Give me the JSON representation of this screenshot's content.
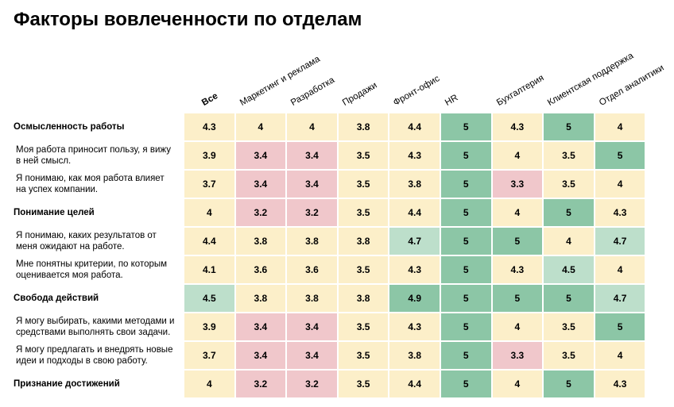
{
  "title": "Факторы вовлеченности по отделам",
  "colors": {
    "green": "#8CC6A6",
    "light_green": "#BDDFCB",
    "cream": "#FCEFC9",
    "pink": "#F0C7CB",
    "text": "#000000",
    "background": "#FFFFFF"
  },
  "chart_data": {
    "type": "heatmap",
    "title": "Факторы вовлеченности по отделам",
    "value_range": [
      1,
      5
    ],
    "legend": false,
    "columns": [
      "Все",
      "Маркетинг и реклама",
      "Разработка",
      "Продажи",
      "Фронт-офис",
      "HR",
      "Бухгалтерия",
      "Клиентская поддержка",
      "Отдел аналитики"
    ],
    "rows": [
      {
        "label": "Осмысленность работы",
        "category": true,
        "values": [
          4.3,
          4,
          4,
          3.8,
          4.4,
          5,
          4.3,
          5,
          4
        ]
      },
      {
        "label": "Моя работа приносит пользу, я вижу в ней смысл.",
        "category": false,
        "values": [
          3.9,
          3.4,
          3.4,
          3.5,
          4.3,
          5,
          4,
          3.5,
          5
        ]
      },
      {
        "label": "Я понимаю, как моя работа влияет на успех компании.",
        "category": false,
        "values": [
          3.7,
          3.4,
          3.4,
          3.5,
          3.8,
          5,
          3.3,
          3.5,
          4
        ]
      },
      {
        "label": "Понимание целей",
        "category": true,
        "values": [
          4,
          3.2,
          3.2,
          3.5,
          4.4,
          5,
          4,
          5,
          4.3
        ]
      },
      {
        "label": "Я понимаю, каких результатов от меня ожидают на работе.",
        "category": false,
        "values": [
          4.4,
          3.8,
          3.8,
          3.8,
          4.7,
          5,
          5,
          4,
          4.7
        ]
      },
      {
        "label": "Мне понятны критерии, по которым оценивается моя работа.",
        "category": false,
        "values": [
          4.1,
          3.6,
          3.6,
          3.5,
          4.3,
          5,
          4.3,
          4.5,
          4
        ]
      },
      {
        "label": "Свобода действий",
        "category": true,
        "values": [
          4.5,
          3.8,
          3.8,
          3.8,
          4.9,
          5,
          5,
          5,
          4.7
        ]
      },
      {
        "label": "Я могу выбирать, какими методами и средствами выполнять свои задачи.",
        "category": false,
        "values": [
          3.9,
          3.4,
          3.4,
          3.5,
          4.3,
          5,
          4,
          3.5,
          5
        ]
      },
      {
        "label": "Я могу предлагать и внедрять новые идеи и подходы в свою работу.",
        "category": false,
        "values": [
          3.7,
          3.4,
          3.4,
          3.5,
          3.8,
          5,
          3.3,
          3.5,
          4
        ]
      },
      {
        "label": "Признание достижений",
        "category": true,
        "values": [
          4,
          3.2,
          3.2,
          3.5,
          4.4,
          5,
          4,
          5,
          4.3
        ]
      }
    ],
    "color_bins": [
      {
        "condition": "<=3.4",
        "color_key": "pink"
      },
      {
        "condition": ">=4.8",
        "color_key": "green"
      },
      {
        "condition": ">=4.5",
        "color_key": "light_green"
      },
      {
        "condition": "default",
        "color_key": "cream"
      }
    ]
  }
}
